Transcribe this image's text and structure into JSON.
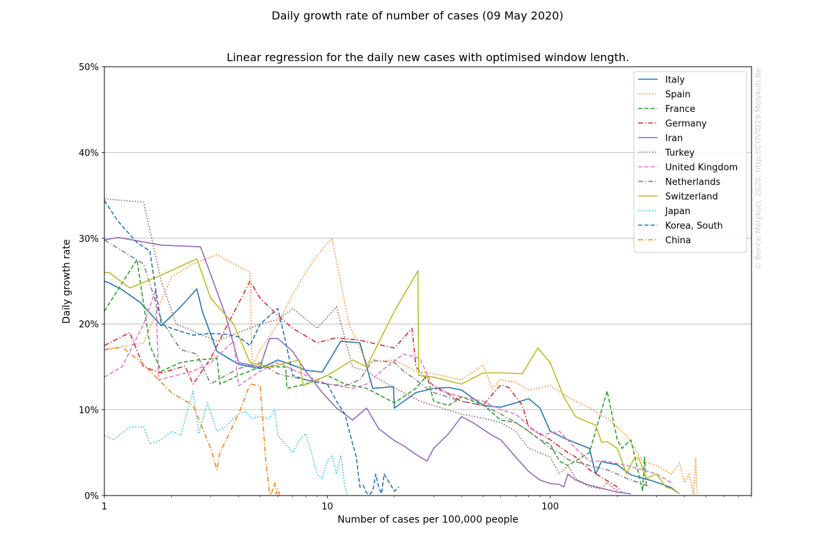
{
  "chart_data": {
    "type": "line",
    "suptitle": "Daily growth rate of number of cases (09 May 2020)",
    "title": "Linear regression for the daily new cases with optimised window length.",
    "xlabel": "Number of cases per 100,000 people",
    "ylabel": "Daily growth rate",
    "x_scale": "log",
    "xlim": [
      1,
      800
    ],
    "ylim": [
      0,
      50
    ],
    "x_ticks": [
      {
        "v": 1,
        "label": "1"
      },
      {
        "v": 10,
        "label": "10"
      },
      {
        "v": 100,
        "label": "100"
      }
    ],
    "y_ticks": [
      {
        "v": 0,
        "label": "0%"
      },
      {
        "v": 10,
        "label": "10%"
      },
      {
        "v": 20,
        "label": "20%"
      },
      {
        "v": 30,
        "label": "30%"
      },
      {
        "v": 40,
        "label": "40%"
      },
      {
        "v": 50,
        "label": "50%"
      }
    ],
    "grid": "horizontal",
    "legend_position": "top-right",
    "watermark": "© Bence Melykuti, 2020. http://COVID19.Melykuti.Be",
    "series": [
      {
        "name": "Italy",
        "color": "#1f77b4",
        "dash": "solid",
        "x": [
          1,
          1.05,
          1.2,
          1.45,
          1.8,
          2.2,
          2.6,
          2.75,
          3.2,
          4,
          5,
          6,
          7,
          8,
          9.5,
          11.5,
          14,
          16,
          18,
          19.8,
          20,
          25,
          30,
          35,
          40,
          50,
          60,
          70,
          80,
          90,
          100,
          120,
          140,
          150,
          160,
          170,
          180,
          200,
          230,
          280,
          320,
          350,
          380
        ],
        "y": [
          25,
          24.8,
          24,
          22.5,
          19.8,
          22,
          24.1,
          21.5,
          16.8,
          15.3,
          14.8,
          15.8,
          15.2,
          14.6,
          14.4,
          18,
          17.8,
          12.5,
          12.6,
          12.7,
          10.2,
          12,
          12.5,
          12.6,
          12.3,
          10.5,
          10.3,
          10.8,
          11.3,
          10.2,
          7.5,
          6.5,
          5.8,
          5.5,
          2.5,
          4,
          3.8,
          3.6,
          2.4,
          1.8,
          1.3,
          0.9,
          0.2
        ]
      },
      {
        "name": "Spain",
        "color": "#ff7f0e",
        "dash": "dotted",
        "x": [
          1,
          1.5,
          2,
          2.5,
          3.2,
          3.5,
          4.5,
          4.6,
          5,
          6,
          7,
          8,
          9,
          10.5,
          12.5,
          15,
          20,
          25,
          30,
          40,
          50,
          55,
          60,
          70,
          80,
          100,
          120,
          150,
          180,
          220,
          260,
          300,
          350,
          380,
          400,
          420,
          440,
          450,
          455,
          460
        ],
        "y": [
          17,
          17.8,
          25.5,
          27,
          28.1,
          27.5,
          26,
          15,
          17,
          20,
          23.5,
          26,
          28,
          30,
          20,
          15.5,
          15.8,
          14.5,
          14.2,
          13.5,
          15.2,
          12.5,
          13.5,
          13.2,
          12.3,
          12.8,
          11.5,
          10.2,
          9,
          7,
          4,
          3.5,
          2.5,
          3.8,
          1.5,
          2.5,
          0.2,
          4.3,
          0.5,
          0.1
        ]
      },
      {
        "name": "France",
        "color": "#2ca02c",
        "dash": "dashed",
        "x": [
          1,
          1.4,
          1.6,
          1.8,
          2.2,
          2.6,
          3.2,
          3.3,
          4,
          5,
          6.5,
          6.6,
          8,
          9,
          10,
          12,
          15,
          20,
          25,
          28,
          30,
          35,
          40,
          50,
          60,
          70,
          80,
          90,
          100,
          110,
          120,
          150,
          180,
          200,
          210,
          230,
          260,
          265,
          270
        ],
        "y": [
          21.5,
          27.5,
          17.5,
          14.5,
          15.5,
          15.8,
          16,
          13,
          14,
          15,
          15,
          12.5,
          13,
          13.5,
          14,
          13,
          12.5,
          10.8,
          12.5,
          14,
          11,
          10.5,
          11.5,
          10.6,
          8.8,
          8.5,
          7.5,
          6.5,
          6,
          4,
          3.5,
          5,
          12.2,
          6.5,
          5.5,
          6.5,
          0.5,
          4.5,
          1
        ]
      },
      {
        "name": "Germany",
        "color": "#d62728",
        "dash": "dashdot",
        "x": [
          1,
          1.3,
          1.5,
          1.8,
          2.3,
          2.5,
          3,
          3.5,
          4.5,
          5,
          6,
          7,
          9,
          11,
          14,
          20,
          24,
          25,
          28,
          30,
          40,
          50,
          55,
          60,
          65,
          75,
          80,
          100,
          120,
          130,
          150,
          200,
          210
        ],
        "y": [
          17.5,
          19,
          15,
          14.3,
          15.1,
          13,
          16,
          19.5,
          25,
          23,
          21,
          19.5,
          17.8,
          18.4,
          18.1,
          17.2,
          19.5,
          15,
          13.5,
          12.8,
          11,
          10.5,
          11.8,
          12.9,
          12.6,
          10.5,
          8,
          6.5,
          5,
          4.5,
          3,
          1,
          0.3
        ]
      },
      {
        "name": "Iran",
        "color": "#9467bd",
        "dash": "solid",
        "x": [
          1,
          1.15,
          1.8,
          2.7,
          3.5,
          4,
          5,
          5.5,
          6,
          7,
          8,
          9.5,
          11,
          13,
          15,
          17,
          20,
          22,
          25,
          28,
          30,
          35,
          40,
          45,
          55,
          60,
          70,
          80,
          90,
          100,
          110,
          115,
          120,
          130,
          150,
          200,
          230
        ],
        "y": [
          29.8,
          30.1,
          29.2,
          29,
          21,
          15.5,
          15,
          18.3,
          18.3,
          16.8,
          14.5,
          12,
          10.2,
          8.8,
          10.2,
          7.8,
          6.4,
          5.8,
          4.8,
          4,
          5.5,
          7.2,
          9.2,
          8.5,
          7,
          6.5,
          4.5,
          2.8,
          1.8,
          1.4,
          1.3,
          1,
          2.5,
          1.8,
          1.2,
          0.4,
          0.2
        ]
      },
      {
        "name": "Turkey",
        "color": "#8c564b",
        "dash": "dotted",
        "x": [
          1,
          1.5,
          1.8,
          2.1,
          2.7,
          3.2,
          4,
          5,
          6,
          7,
          9,
          11,
          13,
          15,
          18,
          22,
          26,
          30,
          40,
          50,
          60,
          70,
          80,
          100,
          110,
          120,
          130,
          150,
          170,
          180,
          200
        ],
        "y": [
          34.6,
          34.2,
          25,
          20,
          18.8,
          18,
          19,
          20,
          20.5,
          21.8,
          19.5,
          22,
          15,
          14.5,
          13.2,
          12,
          11,
          10.5,
          9.5,
          9,
          8.5,
          7.5,
          5.5,
          4.5,
          2.5,
          3.5,
          2,
          1,
          0.8,
          1.5,
          0.5
        ]
      },
      {
        "name": "United Kingdom",
        "color": "#e377c2",
        "dash": "dashed",
        "x": [
          1,
          1.2,
          1.5,
          1.7,
          1.75,
          2.5,
          3,
          3.8,
          4,
          5,
          6,
          8,
          10,
          13,
          15,
          18,
          22,
          26,
          30,
          40,
          50,
          60,
          70,
          90,
          110,
          130,
          150,
          180,
          220,
          260,
          300,
          350
        ],
        "y": [
          13.8,
          15,
          20,
          24,
          13.5,
          14.5,
          15.5,
          18,
          12.8,
          14.5,
          15.5,
          14,
          13,
          12.5,
          13,
          14.8,
          16.5,
          16,
          12.5,
          11.5,
          11,
          10,
          9.5,
          7,
          7.5,
          5.5,
          4,
          4,
          3.5,
          3,
          2.5,
          1.5
        ]
      },
      {
        "name": "Netherlands",
        "color": "#7f7f7f",
        "dash": "dashdot",
        "x": [
          1,
          1.5,
          1.8,
          2.2,
          2.6,
          3,
          3.5,
          4,
          5,
          6,
          7,
          8,
          10,
          12,
          14,
          16,
          20,
          22,
          25,
          28,
          30,
          40,
          50,
          60,
          70,
          80,
          90,
          100,
          110,
          120,
          150,
          180,
          200,
          220,
          250,
          280
        ],
        "y": [
          29.8,
          27,
          20.5,
          17,
          16.5,
          13,
          14,
          14.8,
          15.5,
          14.2,
          13.8,
          13.5,
          13,
          12.8,
          13.5,
          15.8,
          15.5,
          14.5,
          13.5,
          12.5,
          12,
          11,
          10.5,
          9.5,
          8.5,
          7.5,
          6.5,
          5.5,
          5,
          4.2,
          3.5,
          3,
          2.5,
          2,
          1.5,
          1
        ]
      },
      {
        "name": "Switzerland",
        "color": "#bcbd22",
        "dash": "solid",
        "x": [
          1,
          1.05,
          1.3,
          1.8,
          2.6,
          3,
          3.8,
          4.5,
          5.5,
          7.5,
          7.8,
          10,
          13,
          15,
          20,
          25.5,
          25.7,
          30,
          40,
          50,
          60,
          75,
          88,
          100,
          115,
          130,
          150,
          160,
          170,
          180,
          200,
          220,
          240,
          250,
          270,
          300,
          330,
          350,
          380
        ],
        "y": [
          26,
          26,
          24.2,
          25.7,
          27.6,
          23,
          20,
          15.5,
          15,
          15.8,
          12.8,
          14,
          15.8,
          15,
          21.5,
          26.2,
          14,
          13.8,
          13,
          14.3,
          14.3,
          14.2,
          17.2,
          15.5,
          11.5,
          9.2,
          8.5,
          8.2,
          6.2,
          6.3,
          5.5,
          2.5,
          4.5,
          4.3,
          2,
          2.5,
          1,
          0.8,
          0.2
        ]
      },
      {
        "name": "Japan",
        "color": "#17becf",
        "dash": "dotted",
        "x": [
          1,
          1.1,
          1.3,
          1.5,
          1.6,
          1.8,
          2,
          2.2,
          2.5,
          2.65,
          2.9,
          3.2,
          3.5,
          3.8,
          4,
          4.3,
          4.6,
          5,
          5.5,
          5.8,
          6,
          6.5,
          7,
          7.5,
          8,
          8.5,
          9,
          9.5,
          10,
          10.5,
          11,
          11.5,
          12,
          12.3
        ],
        "y": [
          7,
          6.5,
          8,
          8,
          6,
          6.5,
          7.5,
          7,
          12.2,
          7.2,
          10.8,
          7.5,
          8,
          9,
          9.5,
          9.8,
          9,
          9.2,
          9,
          10,
          7,
          6,
          5,
          6.5,
          7.2,
          5,
          2.5,
          2,
          4,
          4.6,
          2.5,
          4.7,
          1,
          0.1
        ]
      },
      {
        "name": "Korea, South",
        "color": "#1f77b4",
        "dash": "dashed",
        "x": [
          1,
          1.15,
          1.4,
          1.6,
          1.7,
          1.8,
          2,
          2.5,
          3,
          3.5,
          4,
          4.5,
          5,
          6,
          6.5,
          7,
          8,
          9,
          10,
          11,
          12,
          13,
          13.5,
          14,
          14.5,
          15,
          15.5,
          16,
          16.5,
          17,
          17.5,
          18,
          19,
          20,
          21
        ],
        "y": [
          34.4,
          32,
          29.5,
          28.5,
          24,
          20,
          19.5,
          18.7,
          18.9,
          18.8,
          18.5,
          17.5,
          20,
          21.8,
          18,
          14,
          13.5,
          13.2,
          13,
          11,
          9.5,
          6,
          4.5,
          1,
          1.2,
          0.3,
          0.1,
          0.5,
          2.5,
          1,
          0.2,
          2.5,
          1.5,
          0.5,
          1
        ]
      },
      {
        "name": "China",
        "color": "#ff7f0e",
        "dash": "dashdot",
        "x": [
          1,
          1.2,
          1.5,
          2,
          2.5,
          3,
          3.2,
          3.3,
          4,
          4.5,
          5,
          5.3,
          5.5,
          5.6,
          5.8,
          5.9,
          6,
          6.1
        ],
        "y": [
          17,
          17.3,
          15.3,
          12,
          10.5,
          5.5,
          3,
          5,
          9.5,
          13,
          12.8,
          4,
          0.4,
          0.1,
          1.5,
          0.2,
          0.8,
          0.1
        ]
      }
    ]
  }
}
